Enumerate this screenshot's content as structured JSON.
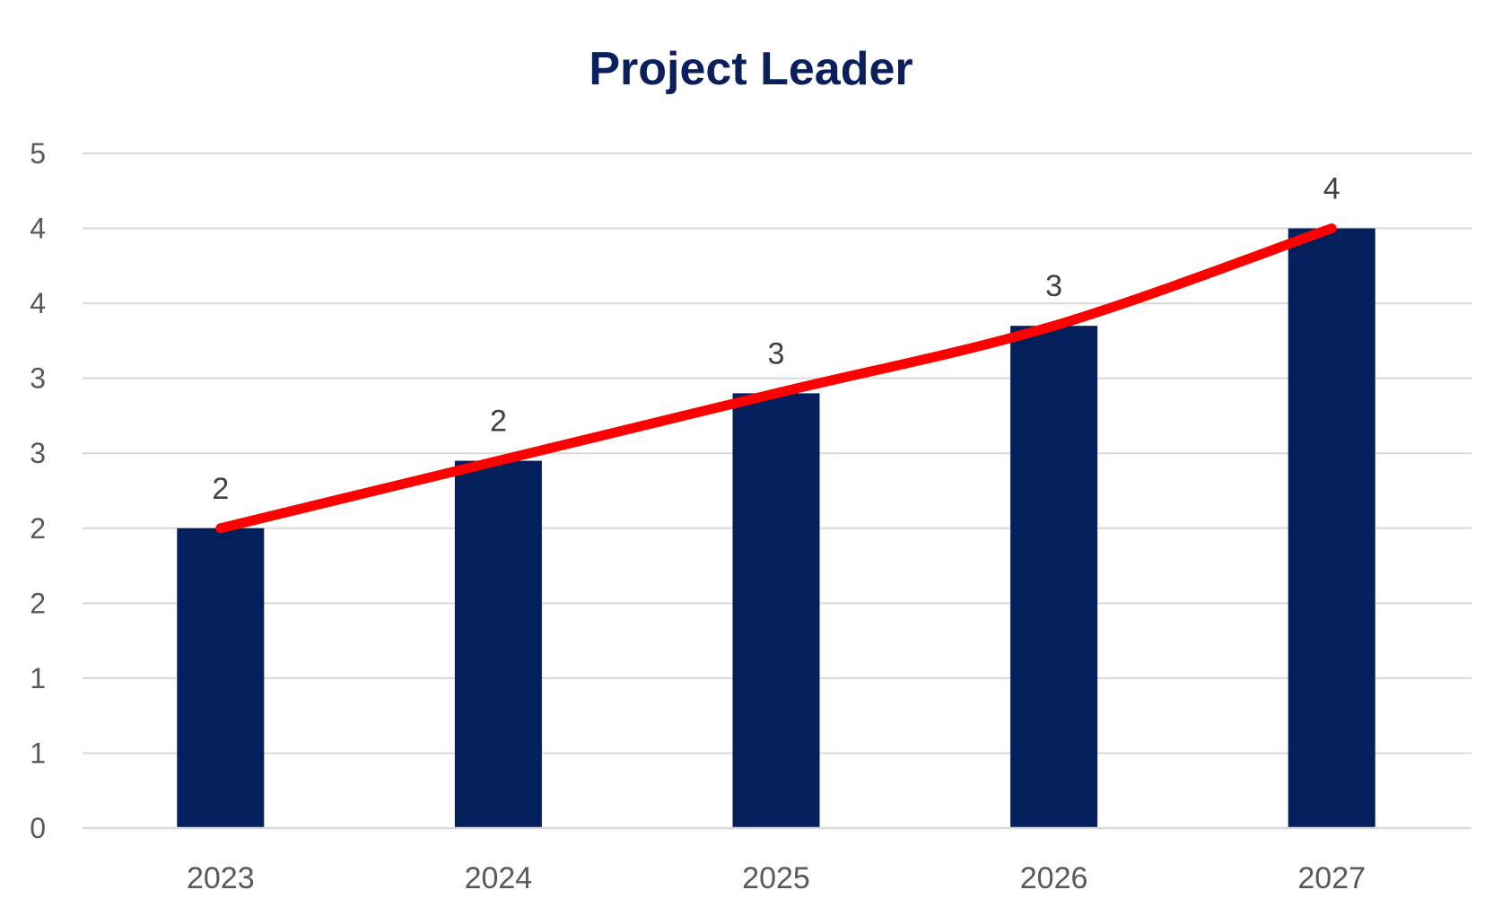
{
  "chart_data": {
    "type": "bar",
    "title": "Project Leader",
    "xlabel": "",
    "ylabel": "",
    "categories": [
      "2023",
      "2024",
      "2025",
      "2026",
      "2027"
    ],
    "values": [
      2.0,
      2.45,
      2.9,
      3.35,
      4.0
    ],
    "data_labels": [
      "2",
      "2",
      "3",
      "3",
      "4"
    ],
    "ylim": [
      0,
      4.5
    ],
    "yticks": [
      0,
      0.5,
      1,
      1.5,
      2,
      2.5,
      3,
      3.5,
      4,
      4.5
    ],
    "ytick_labels": [
      "0",
      "1",
      "1",
      "2",
      "2",
      "3",
      "3",
      "4",
      "4",
      "5"
    ],
    "grid": true,
    "legend": "none",
    "bar_color": "#03205c",
    "trend_line": {
      "type": "line",
      "smooth": true,
      "color": "#ff0000",
      "values": [
        2.0,
        2.45,
        2.9,
        3.35,
        4.0
      ]
    }
  }
}
